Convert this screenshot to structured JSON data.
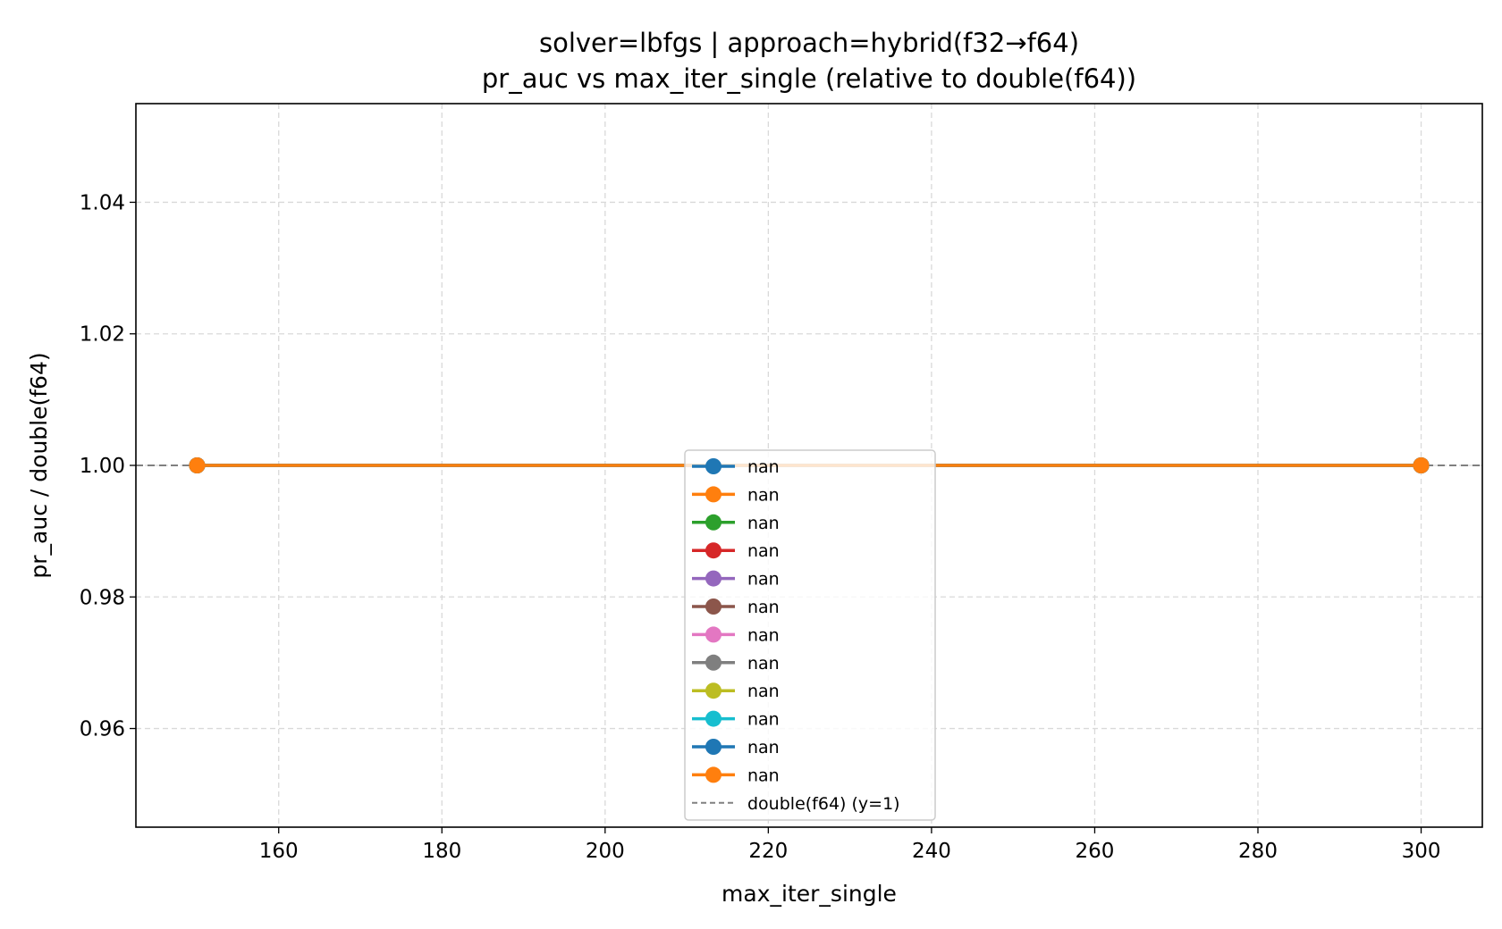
{
  "chart_data": {
    "type": "line",
    "title_line1": "solver=lbfgs | approach=hybrid(f32→f64)",
    "title_line2": "pr_auc vs max_iter_single (relative to double(f64))",
    "xlabel": "max_iter_single",
    "ylabel": "pr_auc / double(f64)",
    "xlim": [
      142.5,
      307.5
    ],
    "ylim": [
      0.945,
      1.055
    ],
    "xticks": [
      160,
      180,
      200,
      220,
      240,
      260,
      280,
      300
    ],
    "yticks": [
      0.96,
      0.98,
      1.0,
      1.02,
      1.04
    ],
    "ytick_labels": [
      "0.96",
      "0.98",
      "1.00",
      "1.02",
      "1.04"
    ],
    "grid": true,
    "legend_position": "lower-center",
    "x": [
      150,
      300
    ],
    "series": [
      {
        "name": "nan",
        "color": "#1f77b4",
        "values": [
          1.0,
          1.0
        ]
      },
      {
        "name": "nan",
        "color": "#ff7f0e",
        "values": [
          1.0,
          1.0
        ]
      },
      {
        "name": "nan",
        "color": "#2ca02c",
        "values": [
          1.0,
          1.0
        ]
      },
      {
        "name": "nan",
        "color": "#d62728",
        "values": [
          1.0,
          1.0
        ]
      },
      {
        "name": "nan",
        "color": "#9467bd",
        "values": [
          1.0,
          1.0
        ]
      },
      {
        "name": "nan",
        "color": "#8c564b",
        "values": [
          1.0,
          1.0
        ]
      },
      {
        "name": "nan",
        "color": "#e377c2",
        "values": [
          1.0,
          1.0
        ]
      },
      {
        "name": "nan",
        "color": "#7f7f7f",
        "values": [
          1.0,
          1.0
        ]
      },
      {
        "name": "nan",
        "color": "#bcbd22",
        "values": [
          1.0,
          1.0
        ]
      },
      {
        "name": "nan",
        "color": "#17becf",
        "values": [
          1.0,
          1.0
        ]
      },
      {
        "name": "nan",
        "color": "#1f77b4",
        "values": [
          1.0,
          1.0
        ]
      },
      {
        "name": "nan",
        "color": "#ff7f0e",
        "values": [
          1.0,
          1.0
        ]
      }
    ],
    "reference_line": {
      "name": "double(f64) (y=1)",
      "y": 1.0,
      "color": "#808080",
      "style": "dashed"
    }
  }
}
